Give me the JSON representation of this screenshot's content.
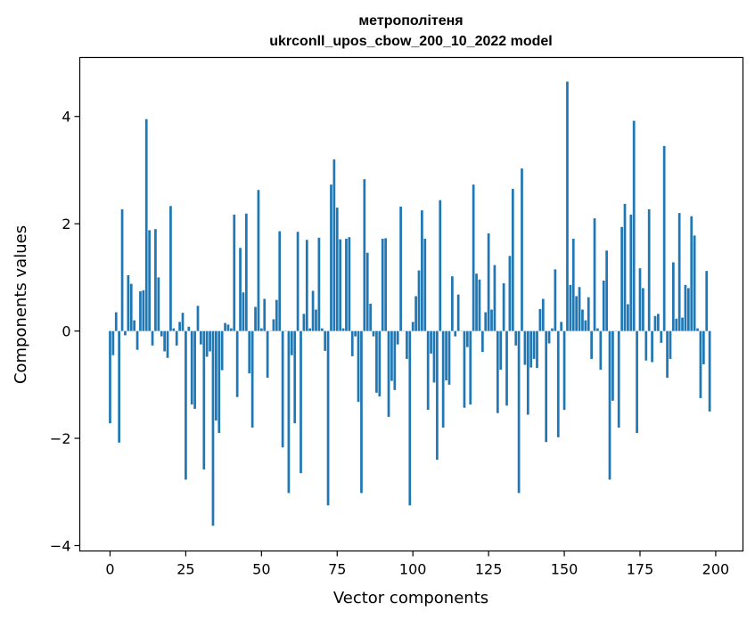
{
  "chart_data": {
    "type": "bar",
    "title_line1": "метрополітеня",
    "title_line2": "ukrconll_upos_cbow_200_10_2022 model",
    "xlabel": "Vector components",
    "ylabel": "Components values",
    "xlim": [
      -10,
      209
    ],
    "ylim": [
      -4.1,
      5.1
    ],
    "xticks": [
      0,
      25,
      50,
      75,
      100,
      125,
      150,
      175,
      200
    ],
    "yticks": [
      -4,
      -2,
      0,
      2,
      4
    ],
    "ytick_labels": [
      "−4",
      "−2",
      "0",
      "2",
      "4"
    ],
    "bar_color": "#1f77b4",
    "grid": false,
    "legend": "none",
    "values": [
      -1.72,
      -0.45,
      0.35,
      -2.08,
      2.27,
      -0.08,
      1.04,
      0.88,
      0.2,
      -0.35,
      0.74,
      0.76,
      3.95,
      1.88,
      -0.27,
      1.9,
      1.0,
      -0.1,
      -0.38,
      -0.5,
      2.33,
      0.05,
      -0.27,
      0.17,
      0.34,
      -2.77,
      0.08,
      -1.37,
      -1.45,
      0.47,
      -0.25,
      -2.58,
      -0.48,
      -0.38,
      -3.63,
      -1.67,
      -1.9,
      -0.73,
      0.15,
      0.12,
      0.05,
      2.17,
      -1.23,
      1.55,
      0.72,
      2.19,
      -0.79,
      -1.8,
      0.45,
      2.63,
      0.05,
      0.6,
      -0.87,
      0.0,
      0.22,
      0.58,
      1.86,
      -2.17,
      0.0,
      -3.02,
      -0.45,
      -1.72,
      1.85,
      -2.65,
      0.32,
      1.7,
      0.05,
      0.75,
      0.4,
      1.74,
      0.05,
      -0.37,
      -3.25,
      2.73,
      3.2,
      2.3,
      1.71,
      0.05,
      1.72,
      1.75,
      -0.47,
      -0.1,
      -1.32,
      -3.02,
      2.83,
      1.46,
      0.51,
      -0.1,
      -1.15,
      -1.22,
      1.72,
      1.73,
      -1.6,
      -0.93,
      -1.1,
      -0.25,
      2.32,
      0.0,
      -0.52,
      -3.25,
      0.17,
      0.65,
      1.13,
      2.25,
      1.72,
      -1.47,
      -0.42,
      -0.96,
      -2.4,
      2.44,
      -1.8,
      -0.92,
      -1.0,
      1.02,
      -0.1,
      0.68,
      0.0,
      -1.43,
      -0.3,
      -1.37,
      2.73,
      1.07,
      0.96,
      -0.39,
      0.35,
      1.82,
      0.4,
      1.23,
      -1.53,
      -0.72,
      0.89,
      -1.39,
      1.4,
      2.65,
      -0.27,
      -3.02,
      3.03,
      -0.63,
      -1.56,
      -0.68,
      -0.52,
      -0.69,
      0.41,
      0.6,
      -2.07,
      -0.23,
      0.05,
      1.15,
      -1.98,
      0.17,
      -1.47,
      4.65,
      0.86,
      1.72,
      0.65,
      0.82,
      0.4,
      0.2,
      0.63,
      -0.52,
      2.1,
      0.05,
      -0.72,
      0.94,
      1.5,
      -2.77,
      -1.3,
      0.0,
      -1.8,
      1.94,
      2.37,
      0.5,
      2.17,
      3.92,
      -1.9,
      1.17,
      0.8,
      -0.55,
      2.27,
      -0.58,
      0.28,
      0.32,
      -0.22,
      3.45,
      -0.87,
      -0.52,
      1.28,
      0.23,
      2.2,
      0.25,
      0.86,
      0.8,
      2.14,
      1.78,
      0.05,
      -1.25,
      -0.62,
      1.12,
      -1.5
    ]
  }
}
